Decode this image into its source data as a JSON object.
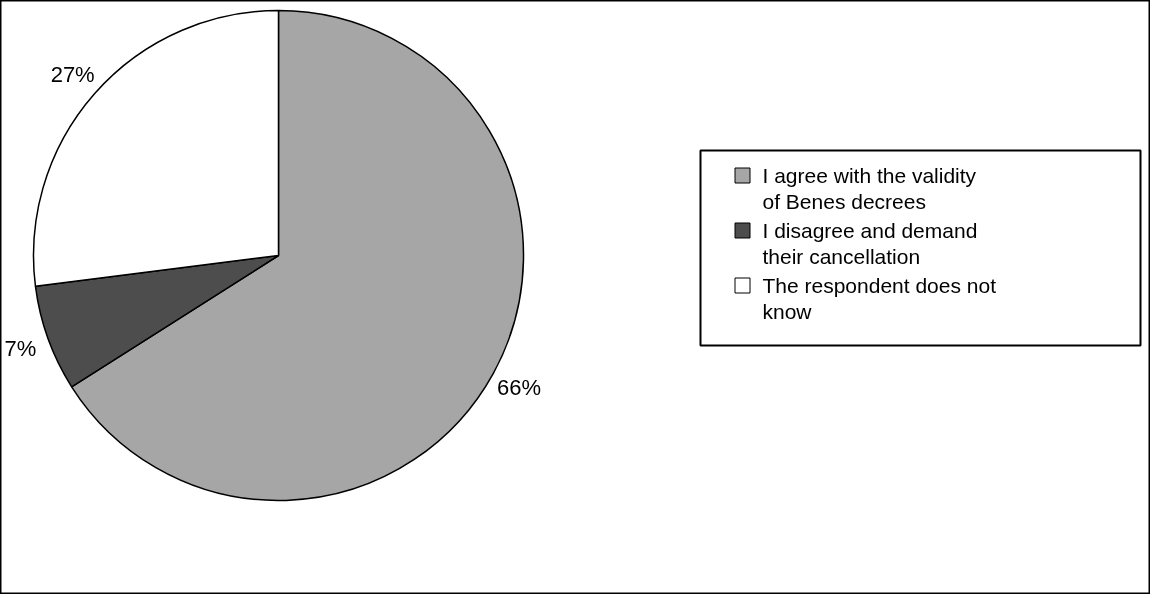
{
  "chart_data": {
    "type": "pie",
    "categories": [
      "I agree with the validity of Benes decrees",
      "I disagree and demand their cancellation",
      "The respondent does not know"
    ],
    "values": [
      66,
      7,
      27
    ],
    "colors": [
      "#a6a6a6",
      "#4d4d4d",
      "#ffffff"
    ],
    "value_labels": [
      "66%",
      "7%",
      "27%"
    ],
    "legend": "right"
  }
}
